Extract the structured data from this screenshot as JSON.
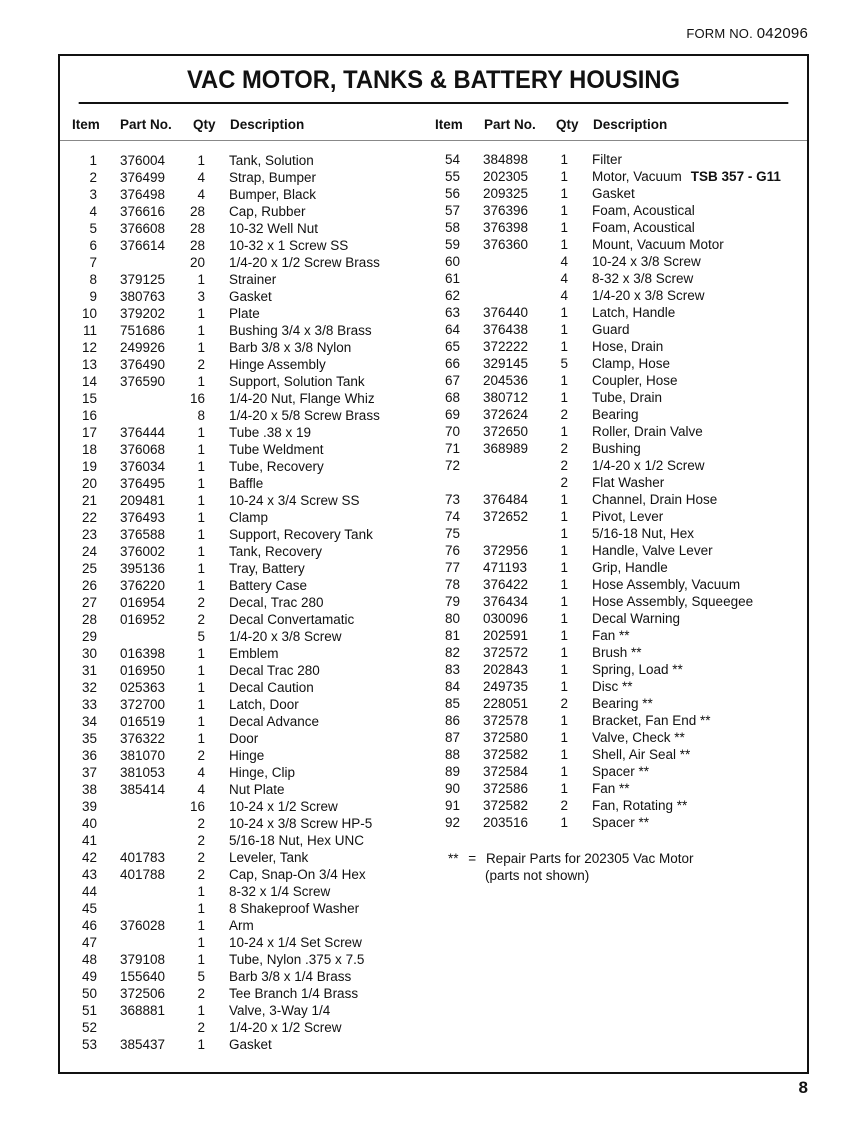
{
  "form_no": {
    "label": "FORM NO.",
    "number": "042096"
  },
  "title": "VAC MOTOR, TANKS & BATTERY HOUSING",
  "headers": {
    "item": "Item",
    "part_no": "Part No.",
    "qty": "Qty",
    "description": "Description"
  },
  "left_rows": [
    [
      "1",
      "376004",
      "1",
      "Tank, Solution"
    ],
    [
      "2",
      "376499",
      "4",
      "Strap, Bumper"
    ],
    [
      "3",
      "376498",
      "4",
      "Bumper, Black"
    ],
    [
      "4",
      "376616",
      "28",
      "Cap, Rubber"
    ],
    [
      "5",
      "376608",
      "28",
      "10-32 Well Nut"
    ],
    [
      "6",
      "376614",
      "28",
      "10-32 x 1 Screw SS"
    ],
    [
      "7",
      "",
      "20",
      "1/4-20 x 1/2 Screw Brass"
    ],
    [
      "8",
      "379125",
      "1",
      "Strainer"
    ],
    [
      "9",
      "380763",
      "3",
      "Gasket"
    ],
    [
      "10",
      "379202",
      "1",
      "Plate"
    ],
    [
      "11",
      "751686",
      "1",
      "Bushing 3/4 x 3/8 Brass"
    ],
    [
      "12",
      "249926",
      "1",
      "Barb 3/8 x 3/8 Nylon"
    ],
    [
      "13",
      "376490",
      "2",
      "Hinge Assembly"
    ],
    [
      "14",
      "376590",
      "1",
      "Support, Solution Tank"
    ],
    [
      "15",
      "",
      "16",
      "1/4-20 Nut, Flange Whiz"
    ],
    [
      "16",
      "",
      "8",
      "1/4-20 x 5/8 Screw Brass"
    ],
    [
      "17",
      "376444",
      "1",
      "Tube .38 x 19"
    ],
    [
      "18",
      "376068",
      "1",
      "Tube Weldment"
    ],
    [
      "19",
      "376034",
      "1",
      "Tube, Recovery"
    ],
    [
      "20",
      "376495",
      "1",
      "Baffle"
    ],
    [
      "21",
      "209481",
      "1",
      "10-24 x 3/4 Screw SS"
    ],
    [
      "22",
      "376493",
      "1",
      "Clamp"
    ],
    [
      "23",
      "376588",
      "1",
      "Support, Recovery Tank"
    ],
    [
      "24",
      "376002",
      "1",
      "Tank, Recovery"
    ],
    [
      "25",
      "395136",
      "1",
      "Tray, Battery"
    ],
    [
      "26",
      "376220",
      "1",
      "Battery Case"
    ],
    [
      "27",
      "016954",
      "2",
      "Decal, Trac 280"
    ],
    [
      "28",
      "016952",
      "2",
      "Decal Convertamatic"
    ],
    [
      "29",
      "",
      "5",
      "1/4-20 x 3/8 Screw"
    ],
    [
      "30",
      "016398",
      "1",
      "Emblem"
    ],
    [
      "31",
      "016950",
      "1",
      "Decal Trac 280"
    ],
    [
      "32",
      "025363",
      "1",
      "Decal Caution"
    ],
    [
      "33",
      "372700",
      "1",
      "Latch, Door"
    ],
    [
      "34",
      "016519",
      "1",
      "Decal Advance"
    ],
    [
      "35",
      "376322",
      "1",
      "Door"
    ],
    [
      "36",
      "381070",
      "2",
      "Hinge"
    ],
    [
      "37",
      "381053",
      "4",
      "Hinge, Clip"
    ],
    [
      "38",
      "385414",
      "4",
      "Nut Plate"
    ],
    [
      "39",
      "",
      "16",
      "10-24 x 1/2 Screw"
    ],
    [
      "40",
      "",
      "2",
      "10-24 x 3/8 Screw HP-5"
    ],
    [
      "41",
      "",
      "2",
      "5/16-18 Nut, Hex UNC"
    ],
    [
      "42",
      "401783",
      "2",
      "Leveler, Tank"
    ],
    [
      "43",
      "401788",
      "2",
      "Cap, Snap-On 3/4 Hex"
    ],
    [
      "44",
      "",
      "1",
      "8-32 x 1/4 Screw"
    ],
    [
      "45",
      "",
      "1",
      "8 Shakeproof Washer"
    ],
    [
      "46",
      "376028",
      "1",
      "Arm"
    ],
    [
      "47",
      "",
      "1",
      "10-24 x 1/4 Set Screw"
    ],
    [
      "48",
      "379108",
      "1",
      "Tube, Nylon .375 x 7.5"
    ],
    [
      "49",
      "155640",
      "5",
      "Barb 3/8 x 1/4 Brass"
    ],
    [
      "50",
      "372506",
      "2",
      "Tee Branch 1/4 Brass"
    ],
    [
      "51",
      "368881",
      "1",
      "Valve, 3-Way 1/4"
    ],
    [
      "52",
      "",
      "2",
      "1/4-20 x 1/2 Screw"
    ],
    [
      "53",
      "385437",
      "1",
      "Gasket"
    ]
  ],
  "right_rows": [
    [
      "54",
      "384898",
      "1",
      "Filter",
      ""
    ],
    [
      "55",
      "202305",
      "1",
      "Motor, Vacuum",
      "TSB 357 - G11"
    ],
    [
      "56",
      "209325",
      "1",
      "Gasket",
      ""
    ],
    [
      "57",
      "376396",
      "1",
      "Foam, Acoustical",
      ""
    ],
    [
      "58",
      "376398",
      "1",
      "Foam, Acoustical",
      ""
    ],
    [
      "59",
      "376360",
      "1",
      "Mount, Vacuum Motor",
      ""
    ],
    [
      "60",
      "",
      "4",
      "10-24 x 3/8 Screw",
      ""
    ],
    [
      "61",
      "",
      "4",
      "8-32 x 3/8 Screw",
      ""
    ],
    [
      "62",
      "",
      "4",
      "1/4-20 x 3/8 Screw",
      ""
    ],
    [
      "63",
      "376440",
      "1",
      "Latch, Handle",
      ""
    ],
    [
      "64",
      "376438",
      "1",
      "Guard",
      ""
    ],
    [
      "65",
      "372222",
      "1",
      "Hose, Drain",
      ""
    ],
    [
      "66",
      "329145",
      "5",
      "Clamp, Hose",
      ""
    ],
    [
      "67",
      "204536",
      "1",
      "Coupler, Hose",
      ""
    ],
    [
      "68",
      "380712",
      "1",
      "Tube, Drain",
      ""
    ],
    [
      "69",
      "372624",
      "2",
      "Bearing",
      ""
    ],
    [
      "70",
      "372650",
      "1",
      "Roller, Drain Valve",
      ""
    ],
    [
      "71",
      "368989",
      "2",
      "Bushing",
      ""
    ],
    [
      "72",
      "",
      "2",
      "1/4-20 x 1/2 Screw",
      ""
    ],
    [
      "",
      "",
      "2",
      "Flat Washer",
      ""
    ],
    [
      "73",
      "376484",
      "1",
      "Channel, Drain Hose",
      ""
    ],
    [
      "74",
      "372652",
      "1",
      "Pivot, Lever",
      ""
    ],
    [
      "75",
      "",
      "1",
      "5/16-18 Nut, Hex",
      ""
    ],
    [
      "76",
      "372956",
      "1",
      "Handle, Valve Lever",
      ""
    ],
    [
      "77",
      "471193",
      "1",
      "Grip, Handle",
      ""
    ],
    [
      "78",
      "376422",
      "1",
      "Hose Assembly, Vacuum",
      ""
    ],
    [
      "79",
      "376434",
      "1",
      "Hose Assembly, Squeegee",
      ""
    ],
    [
      "80",
      "030096",
      "1",
      "Decal Warning",
      ""
    ],
    [
      "81",
      "202591",
      "1",
      "Fan **",
      ""
    ],
    [
      "82",
      "372572",
      "1",
      "Brush **",
      ""
    ],
    [
      "83",
      "202843",
      "1",
      "Spring, Load **",
      ""
    ],
    [
      "84",
      "249735",
      "1",
      "Disc **",
      ""
    ],
    [
      "85",
      "228051",
      "2",
      "Bearing **",
      ""
    ],
    [
      "86",
      "372578",
      "1",
      "Bracket, Fan End **",
      ""
    ],
    [
      "87",
      "372580",
      "1",
      "Valve, Check **",
      ""
    ],
    [
      "88",
      "372582",
      "1",
      "Shell, Air Seal **",
      ""
    ],
    [
      "89",
      "372584",
      "1",
      "Spacer **",
      ""
    ],
    [
      "90",
      "372586",
      "1",
      "Fan **",
      ""
    ],
    [
      "91",
      "372582",
      "2",
      "Fan, Rotating **",
      ""
    ],
    [
      "92",
      "203516",
      "1",
      "Spacer **",
      ""
    ]
  ],
  "footnote": {
    "marker": "**",
    "equals": "=",
    "line1": "Repair Parts for 202305 Vac Motor",
    "line2": "(parts not shown)"
  },
  "page_number": "8"
}
